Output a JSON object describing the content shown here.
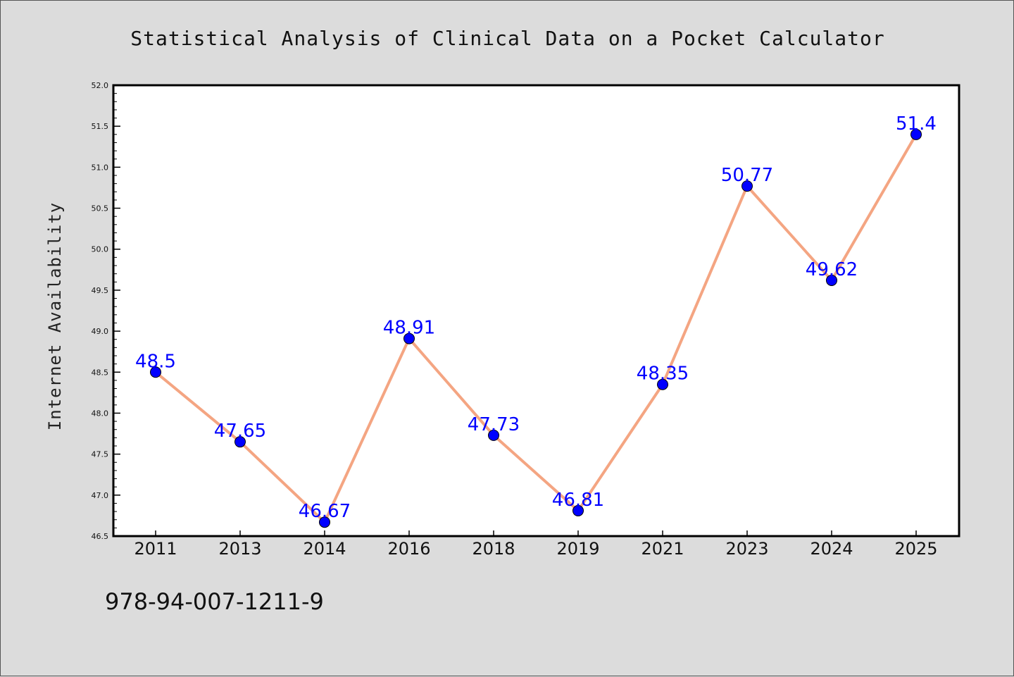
{
  "chart_data": {
    "type": "line",
    "title": "Statistical Analysis of Clinical Data on a Pocket Calculator",
    "xlabel": "",
    "ylabel": "Internet Availability",
    "categories": [
      "2011",
      "2013",
      "2014",
      "2016",
      "2018",
      "2019",
      "2021",
      "2023",
      "2024",
      "2025"
    ],
    "series": [
      {
        "values": [
          48.5,
          47.65,
          46.67,
          48.91,
          47.73,
          46.81,
          48.35,
          50.77,
          49.62,
          51.4
        ],
        "data_labels": [
          "48.5",
          "47.65",
          "46.67",
          "48.91",
          "47.73",
          "46.81",
          "48.35",
          "50.77",
          "49.62",
          "51.4"
        ]
      }
    ],
    "ylim": [
      46.5,
      52.0
    ],
    "yticks": [
      "46.5",
      "47.0",
      "47.5",
      "48.0",
      "48.5",
      "49.0",
      "49.5",
      "50.0",
      "50.5",
      "51.0",
      "51.5",
      "52.0"
    ],
    "grid": false,
    "legend": "none",
    "colors": {
      "line": "#f4a582",
      "marker": "#0000ff",
      "label": "#0000ff",
      "background": "#dcdcdc",
      "plot_background": "#ffffff"
    }
  },
  "footer": {
    "isbn": "978-94-007-1211-9"
  }
}
